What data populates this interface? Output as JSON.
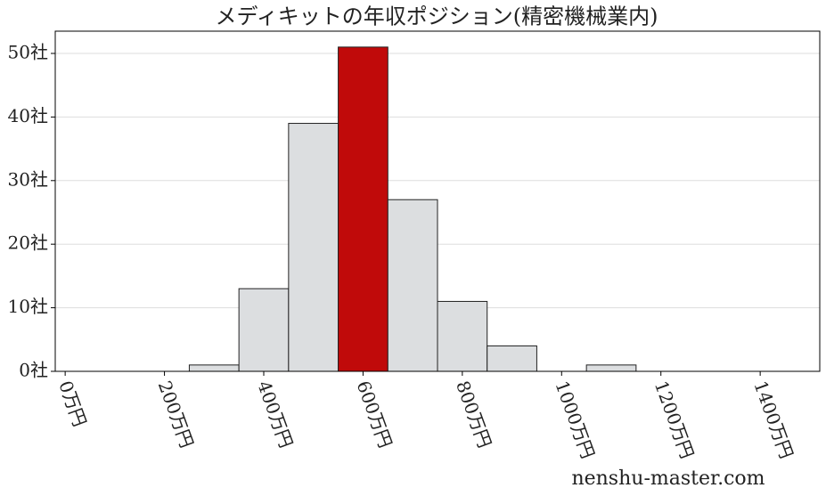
{
  "chart_data": {
    "type": "histogram",
    "title": "メディキットの年収ポジション(精密機械業内)",
    "bins": [
      250,
      350,
      450,
      550,
      650,
      750,
      850,
      950,
      1050,
      1150
    ],
    "counts": [
      1,
      13,
      39,
      51,
      27,
      11,
      4,
      0,
      1
    ],
    "colors": [
      "#dcdee0",
      "#dcdee0",
      "#dcdee0",
      "#c00a0a",
      "#dcdee0",
      "#dcdee0",
      "#dcdee0",
      "#dcdee0",
      "#dcdee0"
    ],
    "xlim": [
      -20,
      1520
    ],
    "xticks": [
      {
        "value": 0,
        "label": "0万円"
      },
      {
        "value": 200,
        "label": "200万円"
      },
      {
        "value": 400,
        "label": "400万円"
      },
      {
        "value": 600,
        "label": "600万円"
      },
      {
        "value": 800,
        "label": "800万円"
      },
      {
        "value": 1000,
        "label": "1000万円"
      },
      {
        "value": 1200,
        "label": "1200万円"
      },
      {
        "value": 1400,
        "label": "1400万円"
      }
    ],
    "ylim": [
      0,
      53.5
    ],
    "yticks": [
      {
        "value": 0,
        "label": "0社"
      },
      {
        "value": 10,
        "label": "10社"
      },
      {
        "value": 20,
        "label": "20社"
      },
      {
        "value": 30,
        "label": "30社"
      },
      {
        "value": 40,
        "label": "40社"
      },
      {
        "value": 50,
        "label": "50社"
      }
    ],
    "grid": true,
    "watermark": "nenshu-master.com"
  }
}
